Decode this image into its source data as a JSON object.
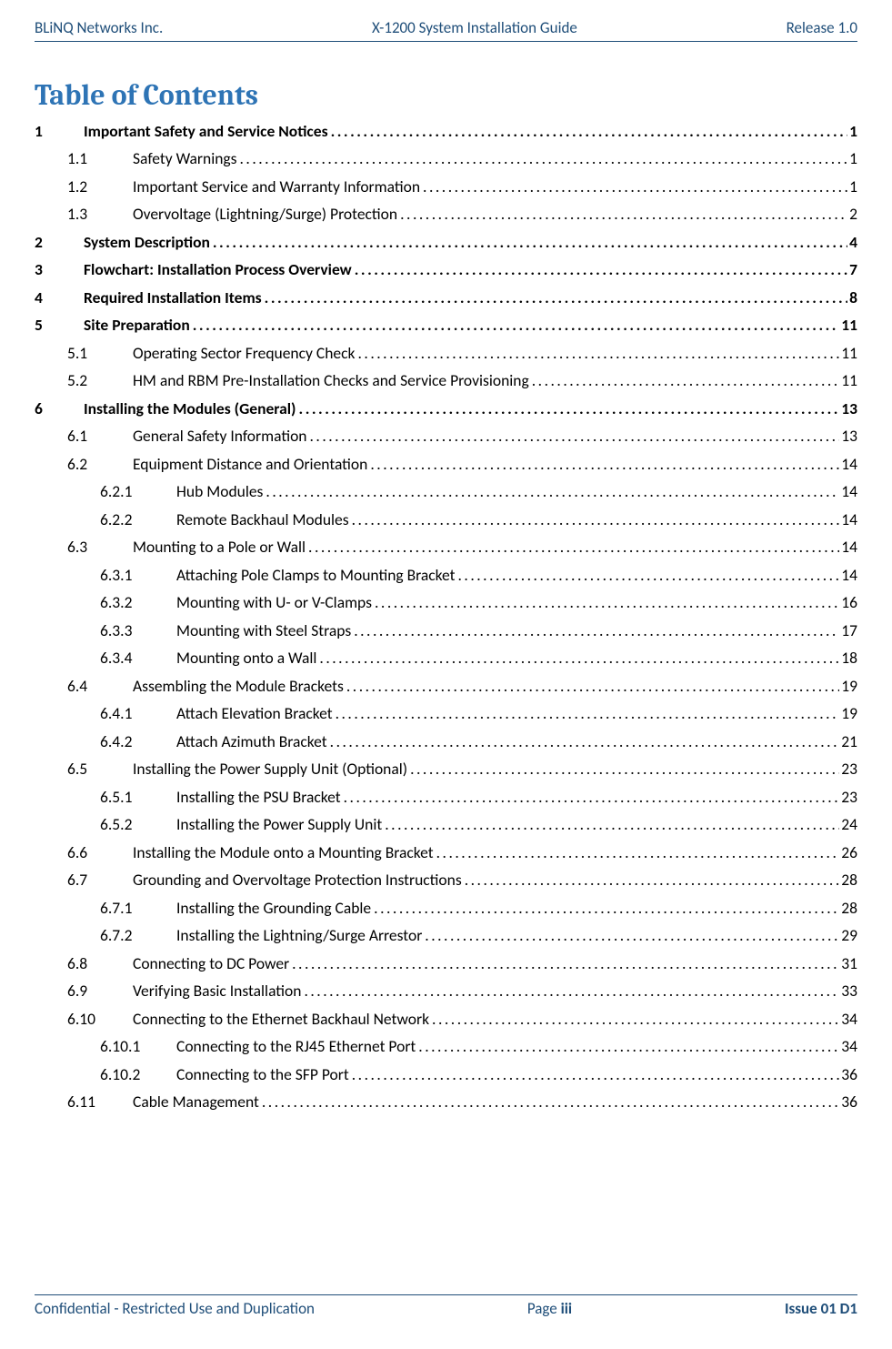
{
  "header": {
    "left": "BLiNQ Networks Inc.",
    "center": "X-1200 System Installation Guide",
    "right": "Release 1.0"
  },
  "toc_title": "Table of Contents",
  "toc": [
    {
      "level": 1,
      "num": "1",
      "title": "Important Safety and Service Notices",
      "page": "1"
    },
    {
      "level": 2,
      "num": "1.1",
      "title": "Safety Warnings",
      "page": "1"
    },
    {
      "level": 2,
      "num": "1.2",
      "title": "Important Service and Warranty Information",
      "page": "1"
    },
    {
      "level": 2,
      "num": "1.3",
      "title": "Overvoltage (Lightning/Surge) Protection",
      "page": "2"
    },
    {
      "level": 1,
      "num": "2",
      "title": "System Description",
      "page": "4"
    },
    {
      "level": 1,
      "num": "3",
      "title": "Flowchart: Installation Process Overview",
      "page": "7"
    },
    {
      "level": 1,
      "num": "4",
      "title": "Required Installation Items",
      "page": "8"
    },
    {
      "level": 1,
      "num": "5",
      "title": "Site Preparation",
      "page": "11"
    },
    {
      "level": 2,
      "num": "5.1",
      "title": "Operating Sector Frequency Check",
      "page": "11"
    },
    {
      "level": 2,
      "num": "5.2",
      "title": "HM and RBM Pre-Installation Checks and Service Provisioning",
      "page": "11"
    },
    {
      "level": 1,
      "num": "6",
      "title": "Installing the Modules (General)",
      "page": "13"
    },
    {
      "level": 2,
      "num": "6.1",
      "title": "General Safety Information",
      "page": "13"
    },
    {
      "level": 2,
      "num": "6.2",
      "title": "Equipment Distance and Orientation",
      "page": "14"
    },
    {
      "level": 3,
      "num": "6.2.1",
      "title": "Hub Modules",
      "page": "14"
    },
    {
      "level": 3,
      "num": "6.2.2",
      "title": "Remote Backhaul Modules",
      "page": "14"
    },
    {
      "level": 2,
      "num": "6.3",
      "title": "Mounting to a Pole or Wall",
      "page": "14"
    },
    {
      "level": 3,
      "num": "6.3.1",
      "title": "Attaching Pole Clamps to Mounting Bracket",
      "page": "14"
    },
    {
      "level": 3,
      "num": "6.3.2",
      "title": "Mounting with U- or V-Clamps",
      "page": "16"
    },
    {
      "level": 3,
      "num": "6.3.3",
      "title": "Mounting with Steel Straps",
      "page": "17"
    },
    {
      "level": 3,
      "num": "6.3.4",
      "title": "Mounting onto a Wall",
      "page": "18"
    },
    {
      "level": 2,
      "num": "6.4",
      "title": "Assembling the Module Brackets",
      "page": "19"
    },
    {
      "level": 3,
      "num": "6.4.1",
      "title": "Attach Elevation Bracket",
      "page": "19"
    },
    {
      "level": 3,
      "num": "6.4.2",
      "title": "Attach Azimuth Bracket",
      "page": "21"
    },
    {
      "level": 2,
      "num": "6.5",
      "title": "Installing the Power Supply Unit (Optional)",
      "page": "23"
    },
    {
      "level": 3,
      "num": "6.5.1",
      "title": "Installing the PSU Bracket",
      "page": "23"
    },
    {
      "level": 3,
      "num": "6.5.2",
      "title": "Installing the Power Supply Unit",
      "page": "24"
    },
    {
      "level": 2,
      "num": "6.6",
      "title": "Installing the Module onto a Mounting Bracket",
      "page": "26"
    },
    {
      "level": 2,
      "num": "6.7",
      "title": "Grounding and Overvoltage Protection Instructions",
      "page": "28"
    },
    {
      "level": 3,
      "num": "6.7.1",
      "title": "Installing the Grounding Cable",
      "page": "28"
    },
    {
      "level": 3,
      "num": "6.7.2",
      "title": "Installing the Lightning/Surge Arrestor",
      "page": "29"
    },
    {
      "level": 2,
      "num": "6.8",
      "title": "Connecting to DC Power",
      "page": "31"
    },
    {
      "level": 2,
      "num": "6.9",
      "title": "Verifying Basic Installation",
      "page": "33"
    },
    {
      "level": 2,
      "num": "6.10",
      "title": "Connecting to the Ethernet Backhaul Network",
      "page": "34"
    },
    {
      "level": 3,
      "num": "6.10.1",
      "title": "Connecting to the RJ45 Ethernet Port",
      "page": "34"
    },
    {
      "level": 3,
      "num": "6.10.2",
      "title": "Connecting to the SFP Port",
      "page": "36"
    },
    {
      "level": 2,
      "num": "6.11",
      "title": "Cable Management",
      "page": "36"
    }
  ],
  "footer": {
    "left": "Confidential - Restricted Use and Duplication",
    "center_prefix": "Page ",
    "center_page": "iii",
    "right": "Issue 01 D1"
  }
}
